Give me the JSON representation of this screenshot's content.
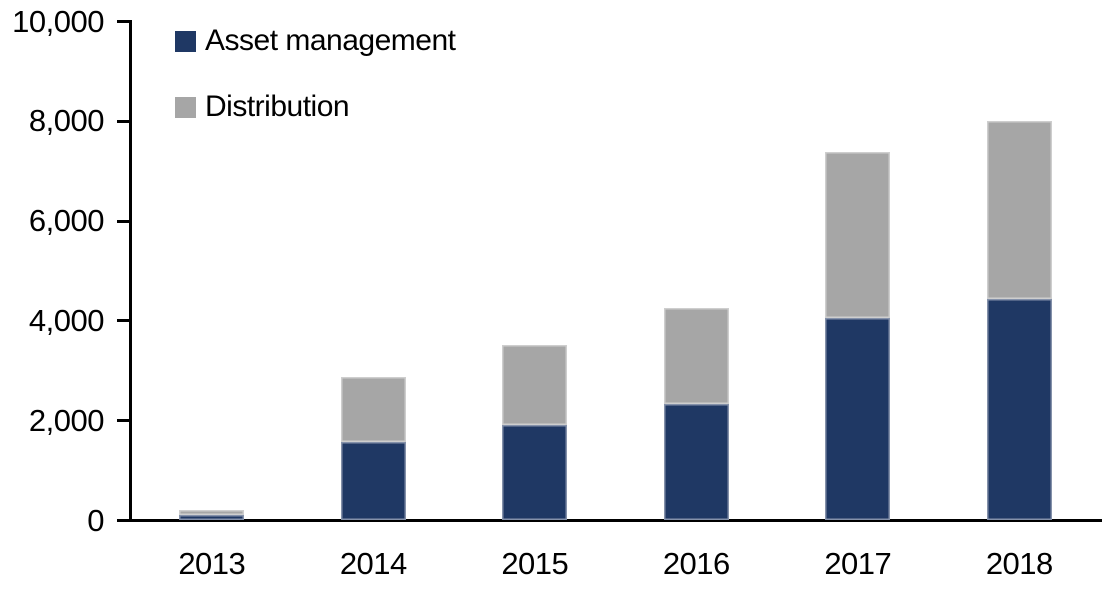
{
  "chart_data": {
    "type": "bar",
    "stacked": true,
    "categories": [
      "2013",
      "2014",
      "2015",
      "2016",
      "2017",
      "2018"
    ],
    "series": [
      {
        "name": "Asset management",
        "color": "#1F3864",
        "values": [
          100,
          1570,
          1900,
          2320,
          4040,
          4420
        ]
      },
      {
        "name": "Distribution",
        "color": "#A6A6A6",
        "values": [
          100,
          1290,
          1600,
          1930,
          3340,
          3580
        ]
      }
    ],
    "stack_totals": [
      200,
      2860,
      3500,
      4250,
      7380,
      8000
    ],
    "ylim": [
      0,
      10000
    ],
    "y_ticks": [
      0,
      2000,
      4000,
      6000,
      8000,
      10000
    ],
    "y_tick_labels": [
      "0",
      "2,000",
      "4,000",
      "6,000",
      "8,000",
      "10,000"
    ],
    "grid": false,
    "legend_position": "top-left-inside",
    "axis_color": "#000000",
    "text_color": "#000000"
  }
}
